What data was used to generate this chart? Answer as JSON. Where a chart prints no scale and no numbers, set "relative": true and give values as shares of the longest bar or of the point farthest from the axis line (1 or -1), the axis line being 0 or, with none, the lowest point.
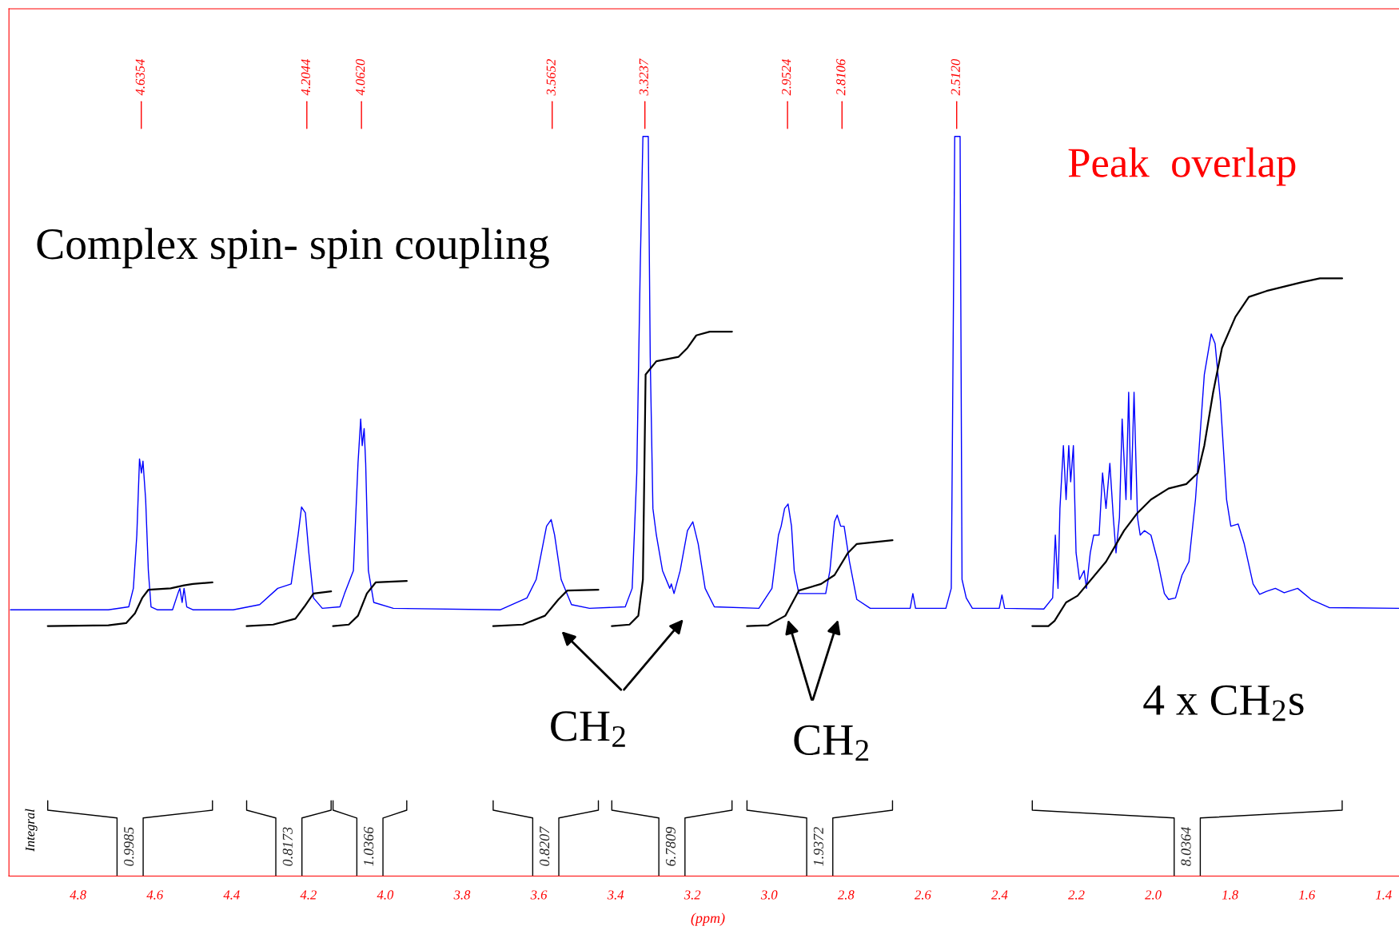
{
  "chart_data": {
    "type": "line",
    "relative": true,
    "xlim": [
      4.98,
      1.36
    ],
    "xticks": [
      4.8,
      4.6,
      4.4,
      4.2,
      {
        "value": 4.0,
        "label": "4.0"
      },
      3.8,
      3.6,
      3.4,
      3.2,
      {
        "value": 3.0,
        "label": "3.0"
      },
      2.8,
      2.6,
      2.4,
      2.2,
      {
        "value": 2.0,
        "label": "2.0"
      },
      1.8,
      1.6,
      1.4
    ],
    "xlabel": "(ppm)",
    "tick_labels": "x",
    "marker": "none",
    "line_style": "solid",
    "series": [
      {
        "color": "#0000ff",
        "x": [
          4.976,
          4.721,
          4.668,
          4.656,
          4.647,
          4.64,
          4.635,
          4.631,
          4.624,
          4.617,
          4.61,
          4.594,
          4.554,
          4.54,
          4.535,
          4.529,
          4.524,
          4.517,
          4.501,
          4.396,
          4.327,
          4.28,
          4.245,
          4.227,
          4.218,
          4.208,
          4.199,
          4.187,
          4.164,
          4.118,
          4.106,
          4.083,
          4.071,
          4.064,
          4.06,
          4.055,
          4.051,
          4.044,
          4.03,
          3.979,
          3.7,
          3.631,
          3.607,
          3.58,
          3.568,
          3.559,
          3.542,
          3.515,
          3.468,
          3.375,
          3.357,
          3.345,
          3.336,
          3.329,
          3.315,
          3.31,
          3.303,
          3.294,
          3.278,
          3.259,
          3.255,
          3.248,
          3.232,
          3.213,
          3.199,
          3.185,
          3.167,
          3.143,
          3.027,
          2.993,
          2.976,
          2.969,
          2.96,
          2.951,
          2.942,
          2.935,
          2.923,
          2.853,
          2.842,
          2.83,
          2.823,
          2.814,
          2.805,
          2.791,
          2.772,
          2.737,
          2.633,
          2.626,
          2.619,
          2.54,
          2.526,
          2.517,
          2.503,
          2.498,
          2.487,
          2.471,
          2.401,
          2.394,
          2.387,
          2.285,
          2.262,
          2.255,
          2.248,
          2.243,
          2.234,
          2.227,
          2.22,
          2.215,
          2.208,
          2.201,
          2.192,
          2.18,
          2.174,
          2.164,
          2.155,
          2.141,
          2.132,
          2.123,
          2.113,
          2.104,
          2.097,
          2.088,
          2.081,
          2.071,
          2.064,
          2.058,
          2.05,
          2.041,
          2.034,
          2.023,
          2.006,
          1.988,
          1.971,
          1.96,
          1.942,
          1.925,
          1.907,
          1.89,
          1.867,
          1.849,
          1.839,
          1.825,
          1.809,
          1.798,
          1.779,
          1.763,
          1.74,
          1.723,
          1.705,
          1.682,
          1.659,
          1.624,
          1.589,
          1.542,
          1.361
        ],
        "values": [
          0.36,
          0.36,
          0.364,
          0.389,
          0.461,
          0.564,
          0.545,
          0.561,
          0.509,
          0.413,
          0.364,
          0.36,
          0.36,
          0.382,
          0.389,
          0.37,
          0.389,
          0.364,
          0.36,
          0.36,
          0.367,
          0.389,
          0.395,
          0.461,
          0.499,
          0.491,
          0.437,
          0.376,
          0.362,
          0.364,
          0.382,
          0.413,
          0.558,
          0.618,
          0.582,
          0.605,
          0.558,
          0.413,
          0.37,
          0.362,
          0.36,
          0.376,
          0.401,
          0.473,
          0.482,
          0.461,
          0.401,
          0.367,
          0.362,
          0.364,
          0.389,
          0.545,
          0.823,
          1.0,
          1.0,
          0.702,
          0.497,
          0.461,
          0.413,
          0.389,
          0.395,
          0.382,
          0.413,
          0.467,
          0.479,
          0.449,
          0.389,
          0.364,
          0.362,
          0.389,
          0.461,
          0.473,
          0.497,
          0.503,
          0.473,
          0.413,
          0.382,
          0.382,
          0.413,
          0.479,
          0.488,
          0.473,
          0.473,
          0.425,
          0.374,
          0.362,
          0.362,
          0.382,
          0.362,
          0.362,
          0.389,
          1.0,
          1.0,
          0.401,
          0.376,
          0.362,
          0.362,
          0.38,
          0.362,
          0.361,
          0.376,
          0.461,
          0.389,
          0.497,
          0.582,
          0.509,
          0.582,
          0.533,
          0.582,
          0.437,
          0.401,
          0.413,
          0.389,
          0.437,
          0.461,
          0.461,
          0.545,
          0.497,
          0.558,
          0.485,
          0.437,
          0.485,
          0.618,
          0.509,
          0.654,
          0.509,
          0.654,
          0.485,
          0.461,
          0.467,
          0.461,
          0.425,
          0.382,
          0.374,
          0.376,
          0.407,
          0.425,
          0.509,
          0.678,
          0.733,
          0.72,
          0.642,
          0.509,
          0.473,
          0.476,
          0.449,
          0.395,
          0.381,
          0.385,
          0.389,
          0.383,
          0.389,
          0.374,
          0.363,
          0.362
        ]
      },
      {
        "color": "#000000",
        "x": [
          4.879,
          4.721,
          4.675,
          4.652,
          4.633,
          4.617,
          4.559,
          4.524,
          4.501,
          4.45
        ],
        "values": [
          0.338,
          0.339,
          0.342,
          0.355,
          0.376,
          0.387,
          0.389,
          0.393,
          0.395,
          0.397
        ]
      },
      {
        "color": "#000000",
        "x": [
          4.361,
          4.292,
          4.234,
          4.211,
          4.187,
          4.141
        ],
        "values": [
          0.338,
          0.34,
          0.348,
          0.364,
          0.382,
          0.385
        ]
      },
      {
        "color": "#000000",
        "x": [
          4.136,
          4.095,
          4.071,
          4.048,
          4.025,
          3.944
        ],
        "values": [
          0.338,
          0.34,
          0.352,
          0.382,
          0.397,
          0.399
        ]
      },
      {
        "color": "#000000",
        "x": [
          3.719,
          3.642,
          3.584,
          3.549,
          3.526,
          3.445
        ],
        "values": [
          0.338,
          0.34,
          0.352,
          0.374,
          0.386,
          0.387
        ]
      },
      {
        "color": "#000000",
        "x": [
          3.41,
          3.364,
          3.341,
          3.329,
          3.322,
          3.294,
          3.236,
          3.213,
          3.19,
          3.155,
          3.097
        ],
        "values": [
          0.338,
          0.34,
          0.352,
          0.401,
          0.678,
          0.696,
          0.702,
          0.714,
          0.731,
          0.736,
          0.736
        ]
      },
      {
        "color": "#000000",
        "x": [
          3.058,
          3.004,
          2.958,
          2.923,
          2.865,
          2.83,
          2.795,
          2.772,
          2.679
        ],
        "values": [
          0.338,
          0.339,
          0.352,
          0.386,
          0.395,
          0.407,
          0.437,
          0.449,
          0.454
        ]
      },
      {
        "color": "#000000",
        "x": [
          2.315,
          2.273,
          2.257,
          2.227,
          2.197,
          2.123,
          2.076,
          2.041,
          2.006,
          1.96,
          1.914,
          1.884,
          1.867,
          1.844,
          1.821,
          1.786,
          1.751,
          1.705,
          1.612,
          1.566,
          1.508
        ],
        "values": [
          0.338,
          0.338,
          0.345,
          0.37,
          0.379,
          0.425,
          0.467,
          0.491,
          0.509,
          0.524,
          0.53,
          0.545,
          0.582,
          0.654,
          0.714,
          0.756,
          0.783,
          0.791,
          0.803,
          0.808,
          0.808
        ]
      }
    ],
    "annotations": [
      "4.6354",
      "4.2044",
      "4.0620",
      "3.5652",
      "3.3237",
      "2.9524",
      "2.8106",
      "2.5120",
      "0.9985",
      "0.8173",
      "1.0366",
      "0.8207",
      "6.7809",
      "1.9372",
      "8.0364",
      "Integral",
      "Complex spin- spin coupling",
      "Peak  overlap",
      "CH$_{2}$",
      "CH$_{2}$",
      "4 x CH$_{2}$s"
    ]
  }
}
